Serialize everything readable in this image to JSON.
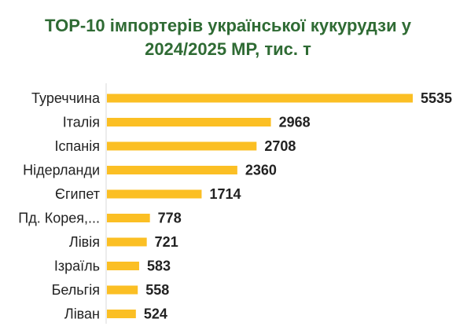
{
  "chart_data": {
    "type": "bar",
    "orientation": "horizontal",
    "title_line1": "TOP-10 імпортерів української кукурудзи у",
    "title_line2": "2024/2025 МР, тис. т",
    "categories": [
      "Туреччина",
      "Італія",
      "Іспанія",
      "Нідерланди",
      "Єгипет",
      "Пд. Корея,...",
      "Лівія",
      "Ізраїль",
      "Бельгія",
      "Ліван"
    ],
    "values": [
      5535,
      2968,
      2708,
      2360,
      1714,
      778,
      721,
      583,
      558,
      524
    ],
    "xlim": [
      0,
      5535
    ],
    "grid": false,
    "legend": "none",
    "bar_color": "#fbbf24",
    "axis_color": "#d9d9d9"
  }
}
